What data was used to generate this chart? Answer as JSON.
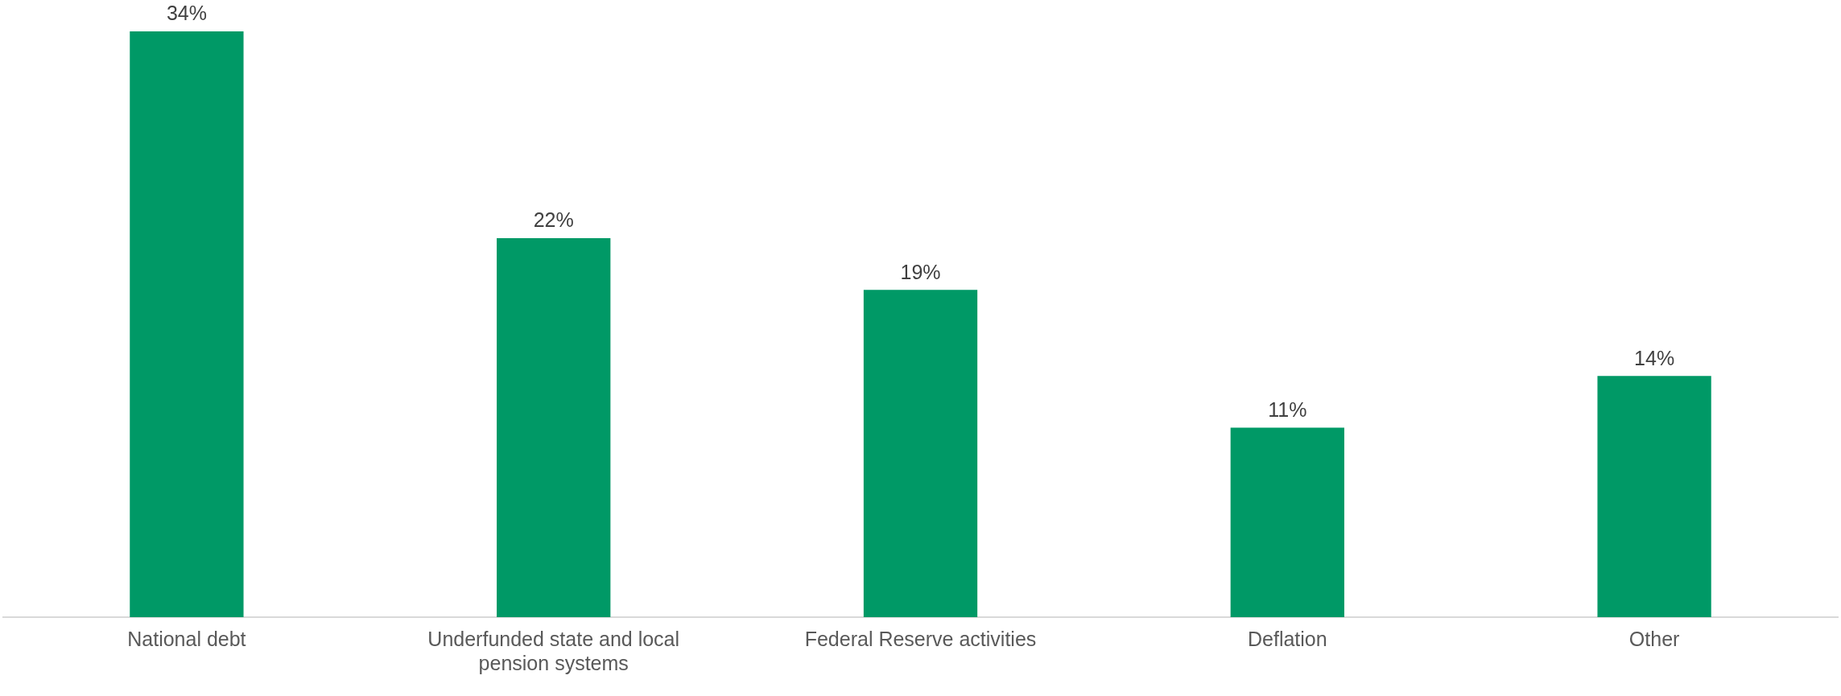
{
  "chart_data": {
    "type": "bar",
    "categories": [
      "National debt",
      "Underfunded state and local pension systems",
      "Federal Reserve activities",
      "Deflation",
      "Other"
    ],
    "values": [
      34,
      22,
      19,
      11,
      14
    ],
    "value_labels": [
      "34%",
      "22%",
      "19%",
      "11%",
      "14%"
    ],
    "color": "#009966"
  }
}
